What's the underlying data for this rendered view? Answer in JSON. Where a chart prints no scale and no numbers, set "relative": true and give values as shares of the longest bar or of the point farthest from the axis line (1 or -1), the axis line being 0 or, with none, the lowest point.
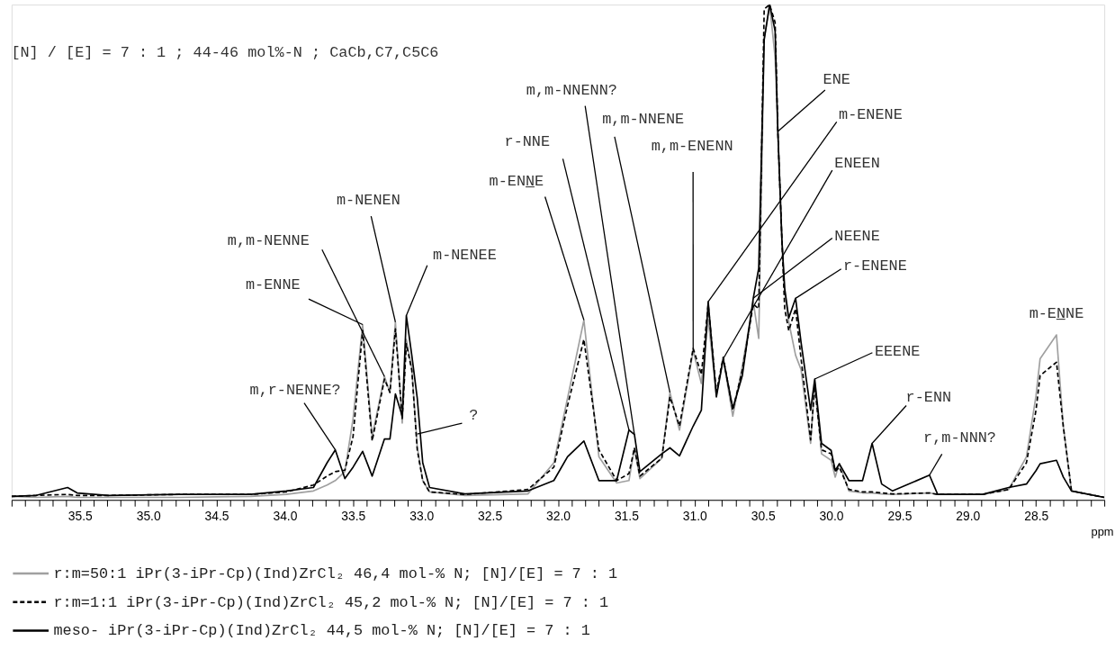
{
  "chart_data": {
    "type": "line",
    "relative": true,
    "title": "[N] / [E] = 7 : 1 ; 44-46 mol%-N ;  CaCb,C7,C5C6",
    "xlabel": "ppm",
    "legend": "bottom",
    "xlim": [
      36,
      28
    ],
    "xticks": [
      {
        "value": 36,
        "label": null
      },
      {
        "value": 35.9,
        "label": null
      },
      {
        "value": 35.8,
        "label": null
      },
      {
        "value": 35.7,
        "label": null
      },
      {
        "value": 35.6,
        "label": null
      },
      35.5,
      {
        "value": 35.4,
        "label": null
      },
      {
        "value": 35.3,
        "label": null
      },
      {
        "value": 35.2,
        "label": null
      },
      {
        "value": 35.1,
        "label": null
      },
      {
        "value": 35,
        "label": "35.0"
      },
      {
        "value": 34.9,
        "label": null
      },
      {
        "value": 34.8,
        "label": null
      },
      {
        "value": 34.7,
        "label": null
      },
      {
        "value": 34.6,
        "label": null
      },
      34.5,
      {
        "value": 34.4,
        "label": null
      },
      {
        "value": 34.3,
        "label": null
      },
      {
        "value": 34.2,
        "label": null
      },
      {
        "value": 34.1,
        "label": null
      },
      {
        "value": 34,
        "label": "34.0"
      },
      {
        "value": 33.9,
        "label": null
      },
      {
        "value": 33.8,
        "label": null
      },
      {
        "value": 33.7,
        "label": null
      },
      {
        "value": 33.6,
        "label": null
      },
      33.5,
      {
        "value": 33.4,
        "label": null
      },
      {
        "value": 33.3,
        "label": null
      },
      {
        "value": 33.2,
        "label": null
      },
      {
        "value": 33.1,
        "label": null
      },
      {
        "value": 33,
        "label": "33.0"
      },
      {
        "value": 32.9,
        "label": null
      },
      {
        "value": 32.8,
        "label": null
      },
      {
        "value": 32.7,
        "label": null
      },
      {
        "value": 32.6,
        "label": null
      },
      32.5,
      {
        "value": 32.4,
        "label": null
      },
      {
        "value": 32.3,
        "label": null
      },
      {
        "value": 32.2,
        "label": null
      },
      {
        "value": 32.1,
        "label": null
      },
      {
        "value": 32,
        "label": "32.0"
      },
      {
        "value": 31.9,
        "label": null
      },
      {
        "value": 31.8,
        "label": null
      },
      {
        "value": 31.7,
        "label": null
      },
      {
        "value": 31.6,
        "label": null
      },
      31.5,
      {
        "value": 31.4,
        "label": null
      },
      {
        "value": 31.3,
        "label": null
      },
      {
        "value": 31.2,
        "label": null
      },
      {
        "value": 31.1,
        "label": null
      },
      {
        "value": 31,
        "label": "31.0"
      },
      {
        "value": 30.9,
        "label": null
      },
      {
        "value": 30.8,
        "label": null
      },
      {
        "value": 30.7,
        "label": null
      },
      {
        "value": 30.6,
        "label": null
      },
      30.5,
      {
        "value": 30.4,
        "label": null
      },
      {
        "value": 30.3,
        "label": null
      },
      {
        "value": 30.2,
        "label": null
      },
      {
        "value": 30.1,
        "label": null
      },
      {
        "value": 30,
        "label": "30.0"
      },
      {
        "value": 29.9,
        "label": null
      },
      {
        "value": 29.8,
        "label": null
      },
      {
        "value": 29.7,
        "label": null
      },
      {
        "value": 29.6,
        "label": null
      },
      29.5,
      {
        "value": 29.4,
        "label": null
      },
      {
        "value": 29.3,
        "label": null
      },
      {
        "value": 29.2,
        "label": null
      },
      {
        "value": 29.1,
        "label": null
      },
      {
        "value": 29,
        "label": "29.0"
      },
      {
        "value": 28.9,
        "label": null
      },
      {
        "value": 28.8,
        "label": null
      },
      {
        "value": 28.7,
        "label": null
      },
      {
        "value": 28.6,
        "label": null
      },
      28.5,
      {
        "value": 28.4,
        "label": null
      },
      {
        "value": 28.3,
        "label": null
      },
      {
        "value": 28.2,
        "label": null
      },
      {
        "value": 28.1,
        "label": null
      },
      {
        "value": 28,
        "label": null
      }
    ],
    "x": [
      36.0,
      35.82,
      35.59,
      35.52,
      35.29,
      34.77,
      34.25,
      33.99,
      33.79,
      33.69,
      33.63,
      33.56,
      33.5,
      33.43,
      33.36,
      33.27,
      33.23,
      33.19,
      33.14,
      33.11,
      33.07,
      33.03,
      32.99,
      32.94,
      32.68,
      32.22,
      32.03,
      31.93,
      31.81,
      31.7,
      31.57,
      31.48,
      31.44,
      31.4,
      31.24,
      31.18,
      31.11,
      31.01,
      30.95,
      30.9,
      30.84,
      30.79,
      30.72,
      30.65,
      30.57,
      30.53,
      30.49,
      30.45,
      30.41,
      30.39,
      30.36,
      30.34,
      30.31,
      30.26,
      30.22,
      30.15,
      30.12,
      30.07,
      30.0,
      29.97,
      29.94,
      29.87,
      29.77,
      29.7,
      29.63,
      29.55,
      29.28,
      29.22,
      28.89,
      28.7,
      28.57,
      28.5,
      28.47,
      28.35,
      28.3,
      28.24,
      28.0
    ],
    "series": [
      {
        "name": "r:m=50:1 iPr(3-iPr-Cp)(Ind)ZrCl₂ 46,4 mol-% N; [N]/[E] = 7 : 1",
        "color": "#a0a0a0",
        "line_style": "solid",
        "values": [
          0.007,
          0.005,
          0.007,
          0.005,
          0.005,
          0.005,
          0.007,
          0.011,
          0.018,
          0.03,
          0.039,
          0.057,
          0.164,
          0.354,
          0.128,
          0.249,
          0.217,
          0.359,
          0.155,
          0.324,
          0.265,
          0.107,
          0.039,
          0.016,
          0.009,
          0.012,
          0.075,
          0.205,
          0.363,
          0.087,
          0.034,
          0.039,
          0.105,
          0.043,
          0.084,
          0.217,
          0.141,
          0.301,
          0.235,
          0.365,
          0.212,
          0.285,
          0.169,
          0.27,
          0.4,
          0.326,
          0.932,
          1,
          0.893,
          0.744,
          0.523,
          0.42,
          0.359,
          0.292,
          0.263,
          0.114,
          0.237,
          0.093,
          0.08,
          0.046,
          0.073,
          0.018,
          0.014,
          0.014,
          0.012,
          0.011,
          0.014,
          0.011,
          0.011,
          0.021,
          0.087,
          0.21,
          0.285,
          0.333,
          0.148,
          0.018,
          0.005
        ]
      },
      {
        "name": "r:m=1:1 iPr(3-iPr-Cp)(Ind)ZrCl₂ 45,2 mol-% N; [N]/[E] = 7 : 1",
        "color": "#000000",
        "line_style": "dashed",
        "values": [
          0.007,
          0.009,
          0.011,
          0.009,
          0.009,
          0.011,
          0.011,
          0.016,
          0.03,
          0.048,
          0.057,
          0.06,
          0.128,
          0.342,
          0.119,
          0.244,
          0.217,
          0.345,
          0.164,
          0.315,
          0.262,
          0.101,
          0.039,
          0.016,
          0.011,
          0.021,
          0.066,
          0.19,
          0.324,
          0.101,
          0.039,
          0.053,
          0.105,
          0.048,
          0.084,
          0.208,
          0.149,
          0.306,
          0.253,
          0.395,
          0.217,
          0.288,
          0.181,
          0.262,
          0.395,
          0.386,
          0.991,
          1,
          0.964,
          0.744,
          0.523,
          0.386,
          0.342,
          0.386,
          0.285,
          0.121,
          0.23,
          0.101,
          0.093,
          0.057,
          0.066,
          0.021,
          0.016,
          0.016,
          0.014,
          0.012,
          0.014,
          0.011,
          0.011,
          0.021,
          0.075,
          0.181,
          0.251,
          0.278,
          0.148,
          0.018,
          0.005
        ]
      },
      {
        "name": "meso- iPr(3-iPr-Cp)(Ind)ZrCl₂ 44,5 mol-% N; [N]/[E] = 7 : 1",
        "color": "#000000",
        "line_style": "solid",
        "values": [
          0.007,
          0.009,
          0.025,
          0.014,
          0.009,
          0.011,
          0.011,
          0.018,
          0.025,
          0.075,
          0.101,
          0.043,
          0.066,
          0.098,
          0.048,
          0.123,
          0.123,
          0.214,
          0.169,
          0.372,
          0.292,
          0.205,
          0.075,
          0.025,
          0.012,
          0.018,
          0.039,
          0.087,
          0.119,
          0.039,
          0.039,
          0.141,
          0.132,
          0.057,
          0.093,
          0.105,
          0.089,
          0.149,
          0.181,
          0.4,
          0.208,
          0.285,
          0.185,
          0.251,
          0.407,
          0.468,
          0.929,
          1,
          0.947,
          0.744,
          0.523,
          0.427,
          0.367,
          0.407,
          0.318,
          0.181,
          0.244,
          0.114,
          0.1,
          0.059,
          0.073,
          0.039,
          0.039,
          0.114,
          0.032,
          0.018,
          0.05,
          0.011,
          0.011,
          0.025,
          0.032,
          0.059,
          0.073,
          0.08,
          0.046,
          0.018,
          0.005
        ]
      }
    ],
    "annotations": [
      {
        "text": "m,r-NENNE?",
        "x": 33.63,
        "y": 0.101
      },
      {
        "text": "m-ENNE",
        "x": 33.43,
        "y": 0.354
      },
      {
        "text": "m,m-NENNE",
        "x": 33.27,
        "y": 0.249
      },
      {
        "text": "m-NENEN",
        "x": 33.19,
        "y": 0.359
      },
      {
        "text": "m-NENEE",
        "x": 33.11,
        "y": 0.372
      },
      {
        "text": "?",
        "x": 33.03,
        "y": 0.133
      },
      {
        "text": "m-ENN̲E",
        "x": 31.81,
        "y": 0.363
      },
      {
        "text": "r-NNE",
        "x": 31.48,
        "y": 0.141
      },
      {
        "text": "m,m-NNENN?",
        "x": 31.44,
        "y": 0.132
      },
      {
        "text": "m,m-NNENE",
        "x": 31.18,
        "y": 0.217
      },
      {
        "text": "m,m-ENENN",
        "x": 31.01,
        "y": 0.301
      },
      {
        "text": "ENE",
        "x": 30.39,
        "y": 0.744
      },
      {
        "text": "m-ENENE",
        "x": 30.9,
        "y": 0.4
      },
      {
        "text": "ENEEN",
        "x": 30.79,
        "y": 0.285
      },
      {
        "text": "NEENE",
        "x": 30.57,
        "y": 0.407
      },
      {
        "text": "r-ENENE",
        "x": 30.26,
        "y": 0.407
      },
      {
        "text": "EEENE",
        "x": 30.12,
        "y": 0.244
      },
      {
        "text": "r-ENN",
        "x": 29.7,
        "y": 0.114
      },
      {
        "text": "r,m-NNN?",
        "x": 29.28,
        "y": 0.05
      },
      {
        "text": "m-EN̲NE",
        "x": 28.35,
        "y": 0.333
      }
    ]
  }
}
